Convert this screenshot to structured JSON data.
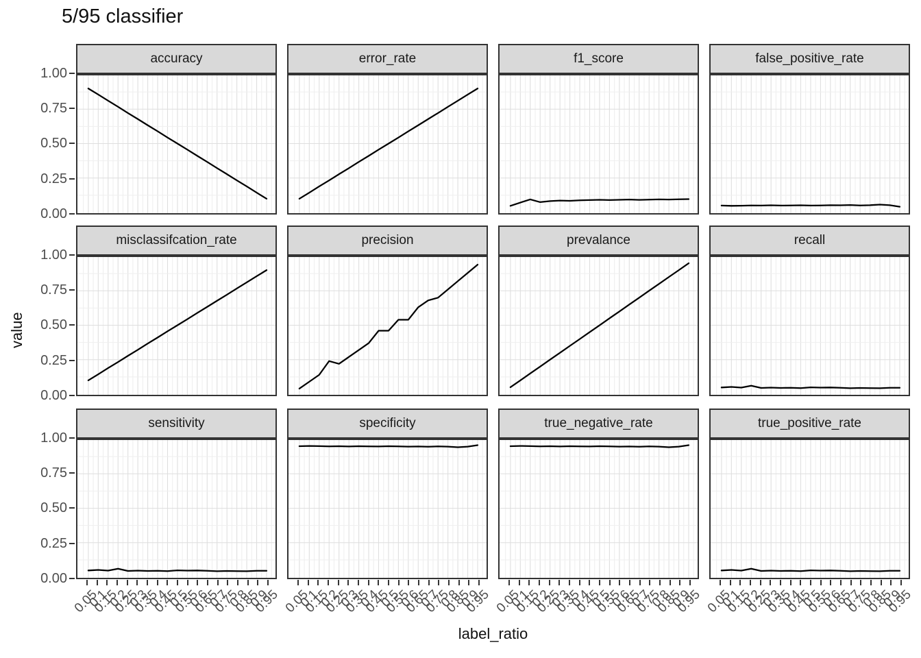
{
  "title": "5/95 classifier",
  "axes": {
    "x_title": "label_ratio",
    "y_title": "value",
    "y_tick_labels": [
      "1.00",
      "0.75",
      "0.50",
      "0.25",
      "0.00"
    ],
    "x_tick_labels": [
      "0.05",
      "0.1",
      "0.15",
      "0.2",
      "0.25",
      "0.3",
      "0.35",
      "0.4",
      "0.45",
      "0.5",
      "0.55",
      "0.6",
      "0.65",
      "0.7",
      "0.75",
      "0.8",
      "0.85",
      "0.9",
      "0.95"
    ]
  },
  "chart_data": {
    "type": "line",
    "title": "5/95 classifier",
    "xlabel": "label_ratio",
    "ylabel": "value",
    "x": [
      0.05,
      0.1,
      0.15,
      0.2,
      0.25,
      0.3,
      0.35,
      0.4,
      0.45,
      0.5,
      0.55,
      0.6,
      0.65,
      0.7,
      0.75,
      0.8,
      0.85,
      0.9,
      0.95
    ],
    "ylim": [
      0,
      1
    ],
    "y_major_ticks": [
      0,
      0.25,
      0.5,
      0.75,
      1.0
    ],
    "grid": "major+minor",
    "legend": "none",
    "colors": {
      "line": "#000000",
      "strip_fill": "#d9d9d9",
      "panel_border": "#333333",
      "grid_major": "#dedede",
      "grid_minor": "#efefef",
      "tick_text": "#4d4d4d"
    },
    "facets": [
      {
        "label": "accuracy",
        "values": [
          0.9,
          0.856,
          0.811,
          0.767,
          0.722,
          0.678,
          0.633,
          0.589,
          0.544,
          0.5,
          0.456,
          0.411,
          0.367,
          0.322,
          0.278,
          0.233,
          0.189,
          0.144,
          0.1
        ]
      },
      {
        "label": "error_rate",
        "values": [
          0.1,
          0.144,
          0.189,
          0.233,
          0.278,
          0.322,
          0.367,
          0.411,
          0.456,
          0.5,
          0.544,
          0.589,
          0.633,
          0.678,
          0.722,
          0.767,
          0.811,
          0.856,
          0.9
        ]
      },
      {
        "label": "f1_score",
        "values": [
          0.048,
          0.072,
          0.095,
          0.075,
          0.083,
          0.086,
          0.085,
          0.088,
          0.09,
          0.092,
          0.09,
          0.092,
          0.094,
          0.091,
          0.093,
          0.095,
          0.094,
          0.096,
          0.097
        ]
      },
      {
        "label": "false_positive_rate",
        "values": [
          0.05,
          0.048,
          0.049,
          0.051,
          0.05,
          0.052,
          0.05,
          0.051,
          0.052,
          0.05,
          0.051,
          0.053,
          0.052,
          0.054,
          0.051,
          0.053,
          0.057,
          0.053,
          0.042
        ]
      },
      {
        "label": "misclassifcation_rate",
        "values": [
          0.1,
          0.144,
          0.189,
          0.233,
          0.278,
          0.322,
          0.367,
          0.411,
          0.456,
          0.5,
          0.544,
          0.589,
          0.633,
          0.678,
          0.722,
          0.767,
          0.811,
          0.856,
          0.9
        ]
      },
      {
        "label": "precision",
        "values": [
          0.04,
          0.09,
          0.14,
          0.24,
          0.22,
          0.27,
          0.32,
          0.37,
          0.46,
          0.46,
          0.54,
          0.54,
          0.63,
          0.68,
          0.7,
          0.76,
          0.82,
          0.88,
          0.94
        ]
      },
      {
        "label": "prevalance",
        "values": [
          0.05,
          0.1,
          0.15,
          0.2,
          0.25,
          0.3,
          0.35,
          0.4,
          0.45,
          0.5,
          0.55,
          0.6,
          0.65,
          0.7,
          0.75,
          0.8,
          0.85,
          0.9,
          0.95
        ]
      },
      {
        "label": "recall",
        "values": [
          0.048,
          0.052,
          0.047,
          0.061,
          0.045,
          0.047,
          0.045,
          0.046,
          0.044,
          0.049,
          0.047,
          0.048,
          0.046,
          0.043,
          0.045,
          0.044,
          0.043,
          0.046,
          0.046
        ]
      },
      {
        "label": "sensitivity",
        "values": [
          0.048,
          0.052,
          0.047,
          0.061,
          0.045,
          0.047,
          0.045,
          0.046,
          0.044,
          0.049,
          0.047,
          0.048,
          0.046,
          0.043,
          0.045,
          0.044,
          0.043,
          0.046,
          0.046
        ]
      },
      {
        "label": "specificity",
        "values": [
          0.95,
          0.952,
          0.951,
          0.949,
          0.95,
          0.948,
          0.95,
          0.949,
          0.948,
          0.95,
          0.949,
          0.947,
          0.948,
          0.946,
          0.949,
          0.947,
          0.943,
          0.947,
          0.958
        ]
      },
      {
        "label": "true_negative_rate",
        "values": [
          0.95,
          0.952,
          0.951,
          0.949,
          0.95,
          0.948,
          0.95,
          0.949,
          0.948,
          0.95,
          0.949,
          0.947,
          0.948,
          0.946,
          0.949,
          0.947,
          0.943,
          0.947,
          0.958
        ]
      },
      {
        "label": "true_positive_rate",
        "values": [
          0.048,
          0.052,
          0.047,
          0.061,
          0.045,
          0.047,
          0.045,
          0.046,
          0.044,
          0.049,
          0.047,
          0.048,
          0.046,
          0.043,
          0.045,
          0.044,
          0.043,
          0.046,
          0.046
        ]
      }
    ]
  }
}
